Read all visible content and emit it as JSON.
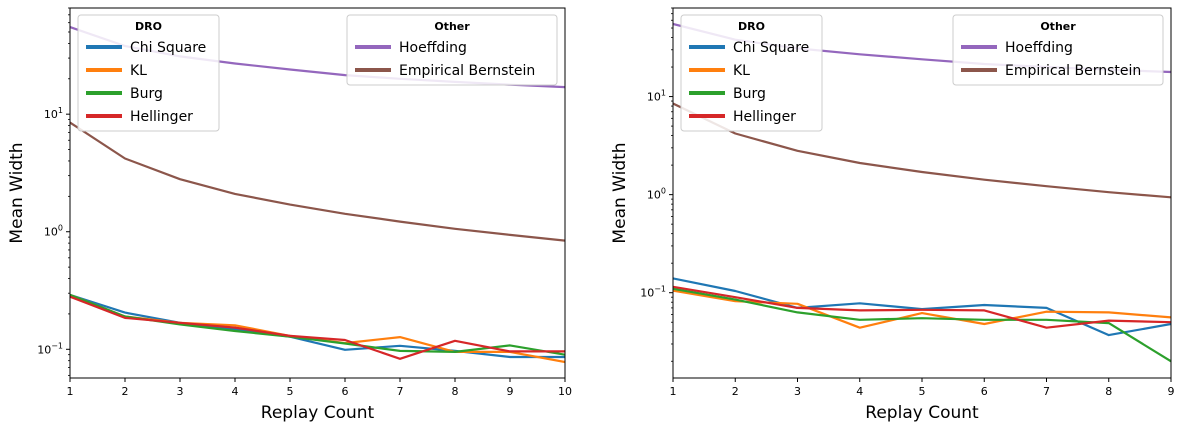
{
  "chart_data": [
    {
      "type": "line",
      "xlabel": "Replay Count",
      "ylabel": "Mean Width",
      "yscale": "log",
      "xlim": [
        1,
        10
      ],
      "ylim": [
        0.057,
        80
      ],
      "xticks": [
        "1",
        "2",
        "3",
        "4",
        "5",
        "6",
        "7",
        "8",
        "9",
        "10"
      ],
      "yticks": [
        {
          "value": 0.1,
          "base": "10",
          "exp": "−1"
        },
        {
          "value": 1,
          "base": "10",
          "exp": "0"
        },
        {
          "value": 10,
          "base": "10",
          "exp": "1"
        }
      ],
      "grid": false,
      "x": [
        1,
        2,
        3,
        4,
        5,
        6,
        7,
        8,
        9,
        10
      ],
      "legends": [
        {
          "title": "DRO",
          "placement": "upper-left",
          "entries": [
            "Chi Square",
            "KL",
            "Burg",
            "Hellinger"
          ]
        },
        {
          "title": "Other",
          "placement": "upper-right",
          "entries": [
            "Hoeffding",
            "Empirical Bernstein"
          ]
        }
      ],
      "series": [
        {
          "name": "Chi Square",
          "color": "#1f77b4",
          "values": [
            0.29,
            0.205,
            0.168,
            0.148,
            0.128,
            0.099,
            0.107,
            0.097,
            0.086,
            0.086
          ]
        },
        {
          "name": "KL",
          "color": "#ff7f0e",
          "values": [
            0.29,
            0.19,
            0.168,
            0.16,
            0.13,
            0.113,
            0.127,
            0.095,
            0.095,
            0.078
          ]
        },
        {
          "name": "Burg",
          "color": "#2ca02c",
          "values": [
            0.29,
            0.19,
            0.163,
            0.143,
            0.128,
            0.112,
            0.097,
            0.095,
            0.108,
            0.09
          ]
        },
        {
          "name": "Hellinger",
          "color": "#d62728",
          "values": [
            0.28,
            0.185,
            0.168,
            0.153,
            0.13,
            0.12,
            0.083,
            0.118,
            0.096,
            0.096
          ]
        },
        {
          "name": "Hoeffding",
          "color": "#9467bd",
          "values": [
            55,
            38,
            31,
            27,
            24,
            21.5,
            20,
            18.8,
            17.8,
            17
          ]
        },
        {
          "name": "Empirical Bernstein",
          "color": "#8c564b",
          "values": [
            8.5,
            4.2,
            2.8,
            2.1,
            1.7,
            1.42,
            1.22,
            1.06,
            0.94,
            0.84
          ]
        }
      ]
    },
    {
      "type": "line",
      "xlabel": "Replay Count",
      "ylabel": "Mean Width",
      "yscale": "log",
      "xlim": [
        1,
        9
      ],
      "ylim": [
        0.0135,
        80
      ],
      "xticks": [
        "1",
        "2",
        "3",
        "4",
        "5",
        "6",
        "7",
        "8",
        "9"
      ],
      "yticks": [
        {
          "value": 0.1,
          "base": "10",
          "exp": "−1"
        },
        {
          "value": 1,
          "base": "10",
          "exp": "0"
        },
        {
          "value": 10,
          "base": "10",
          "exp": "1"
        }
      ],
      "grid": false,
      "x": [
        1,
        2,
        3,
        4,
        5,
        6,
        7,
        8,
        9
      ],
      "legends": [
        {
          "title": "DRO",
          "placement": "upper-left",
          "entries": [
            "Chi Square",
            "KL",
            "Burg",
            "Hellinger"
          ]
        },
        {
          "title": "Other",
          "placement": "upper-right",
          "entries": [
            "Hoeffding",
            "Empirical Bernstein"
          ]
        }
      ],
      "series": [
        {
          "name": "Chi Square",
          "color": "#1f77b4",
          "values": [
            0.14,
            0.104,
            0.07,
            0.078,
            0.068,
            0.075,
            0.07,
            0.037,
            0.048
          ]
        },
        {
          "name": "KL",
          "color": "#ff7f0e",
          "values": [
            0.105,
            0.082,
            0.077,
            0.044,
            0.062,
            0.048,
            0.064,
            0.063,
            0.056
          ]
        },
        {
          "name": "Burg",
          "color": "#2ca02c",
          "values": [
            0.11,
            0.085,
            0.063,
            0.053,
            0.055,
            0.053,
            0.053,
            0.049,
            0.02
          ]
        },
        {
          "name": "Hellinger",
          "color": "#d62728",
          "values": [
            0.115,
            0.09,
            0.07,
            0.066,
            0.067,
            0.066,
            0.044,
            0.052,
            0.05
          ]
        },
        {
          "name": "Hoeffding",
          "color": "#9467bd",
          "values": [
            55,
            38,
            31,
            27,
            24,
            21.5,
            20,
            18.8,
            17.8
          ]
        },
        {
          "name": "Empirical Bernstein",
          "color": "#8c564b",
          "values": [
            8.5,
            4.2,
            2.8,
            2.1,
            1.7,
            1.42,
            1.22,
            1.06,
            0.94
          ]
        }
      ]
    }
  ]
}
